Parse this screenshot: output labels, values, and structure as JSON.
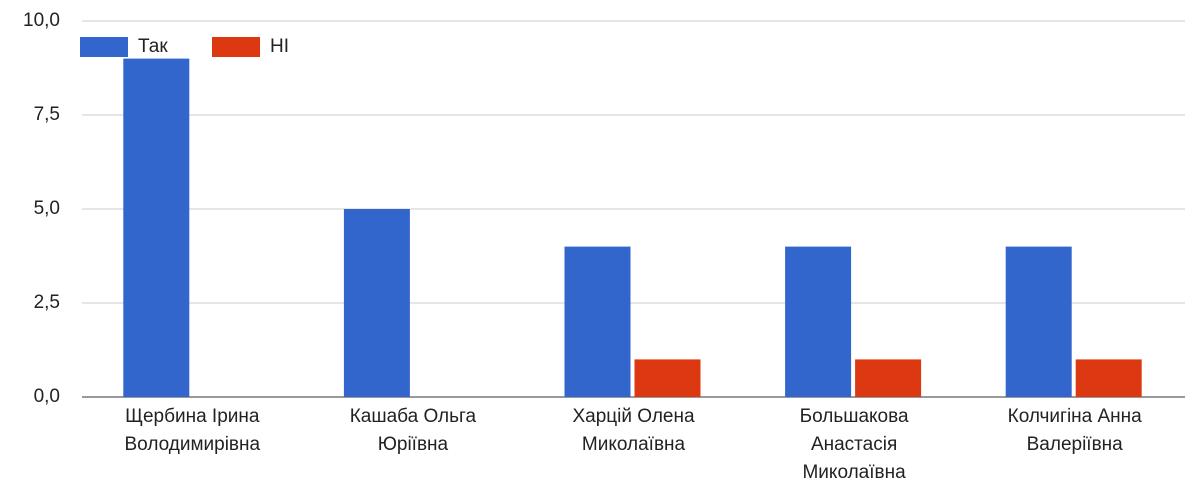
{
  "chart_data": {
    "type": "bar",
    "categories": [
      [
        "Щербина Ірина",
        "Володимирівна"
      ],
      [
        "Кашаба Ольга",
        "Юріївна"
      ],
      [
        "Харцій Олена",
        "Миколаївна"
      ],
      [
        "Большакова",
        "Анастасія",
        "Миколаївна"
      ],
      [
        "Колчигіна Анна",
        "Валеріївна"
      ]
    ],
    "series": [
      {
        "name": "Так",
        "color": "#3366cc",
        "values": [
          9,
          5,
          4,
          4,
          4
        ]
      },
      {
        "name": "НІ",
        "color": "#dc3912",
        "values": [
          0,
          0,
          1,
          1,
          1
        ]
      }
    ],
    "ylim": [
      0,
      10
    ],
    "yticks": [
      {
        "value": 0,
        "label": "0,0"
      },
      {
        "value": 2.5,
        "label": "2,5"
      },
      {
        "value": 5,
        "label": "5,0"
      },
      {
        "value": 7.5,
        "label": "7,5"
      },
      {
        "value": 10,
        "label": "10,0"
      }
    ],
    "grid": true,
    "legend": "top-left"
  }
}
